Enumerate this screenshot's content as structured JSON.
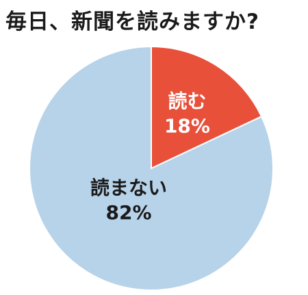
{
  "chart_data": {
    "type": "pie",
    "title": "毎日、新聞を読みますか?",
    "slices": [
      {
        "label": "読む",
        "value": 18,
        "value_label": "18%",
        "color": "#e8503a",
        "label_color": "#ffffff"
      },
      {
        "label": "読まない",
        "value": 82,
        "value_label": "82%",
        "color": "#b7d3e9",
        "label_color": "#1a1a1a"
      }
    ],
    "start": "12 o'clock",
    "direction": "clockwise",
    "legend": "none"
  }
}
